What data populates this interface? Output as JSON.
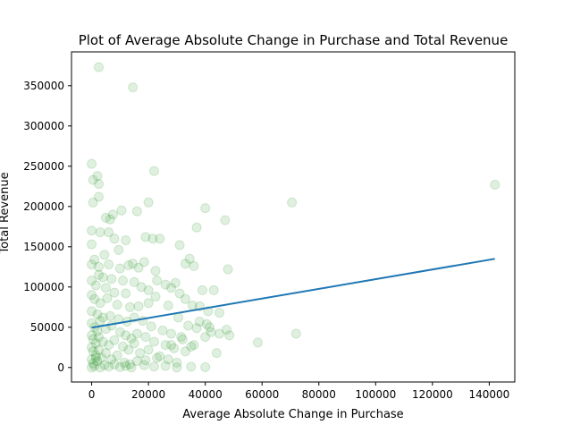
{
  "chart_data": {
    "type": "scatter",
    "title": "Plot of Average Absolute Change in Purchase and Total Revenue",
    "xlabel": "Average Absolute Change in Purchase",
    "ylabel": "Total Revenue",
    "xlim": [
      -7100,
      149000
    ],
    "ylim": [
      -18000,
      392000
    ],
    "xticks": [
      0,
      20000,
      40000,
      60000,
      80000,
      100000,
      120000,
      140000
    ],
    "yticks": [
      0,
      50000,
      100000,
      150000,
      200000,
      250000,
      300000,
      350000
    ],
    "grid": false,
    "point_color": "#008000",
    "point_alpha": 0.12,
    "line_color": "#1f77b4",
    "trend_line": [
      [
        0,
        49500
      ],
      [
        142000,
        135000
      ]
    ],
    "points": [
      [
        2500,
        373000
      ],
      [
        14500,
        348000
      ],
      [
        22000,
        244000
      ],
      [
        142000,
        227000
      ],
      [
        0,
        253000
      ],
      [
        2000,
        238000
      ],
      [
        500,
        233000
      ],
      [
        2500,
        228000
      ],
      [
        2500,
        212000
      ],
      [
        500,
        205000
      ],
      [
        20000,
        205000
      ],
      [
        70500,
        205000
      ],
      [
        40000,
        198000
      ],
      [
        16000,
        194000
      ],
      [
        10500,
        195000
      ],
      [
        7500,
        190000
      ],
      [
        47000,
        183000
      ],
      [
        5000,
        186000
      ],
      [
        6500,
        184000
      ],
      [
        37000,
        174000
      ],
      [
        0,
        170000
      ],
      [
        3000,
        168000
      ],
      [
        6000,
        168000
      ],
      [
        12000,
        158000
      ],
      [
        19000,
        162000
      ],
      [
        21500,
        160000
      ],
      [
        24000,
        160000
      ],
      [
        31000,
        152000
      ],
      [
        0,
        153000
      ],
      [
        8000,
        160000
      ],
      [
        4500,
        140000
      ],
      [
        9500,
        146000
      ],
      [
        34500,
        135000
      ],
      [
        33000,
        129000
      ],
      [
        36000,
        126000
      ],
      [
        48000,
        122000
      ],
      [
        22500,
        120000
      ],
      [
        18500,
        131000
      ],
      [
        1000,
        134000
      ],
      [
        0,
        128000
      ],
      [
        2500,
        125000
      ],
      [
        6000,
        128000
      ],
      [
        10000,
        123000
      ],
      [
        13000,
        127000
      ],
      [
        14500,
        129000
      ],
      [
        16500,
        124000
      ],
      [
        4000,
        112000
      ],
      [
        7000,
        110000
      ],
      [
        11000,
        108000
      ],
      [
        15000,
        106000
      ],
      [
        23000,
        108000
      ],
      [
        26000,
        103000
      ],
      [
        28000,
        99000
      ],
      [
        31000,
        92000
      ],
      [
        39000,
        96000
      ],
      [
        43000,
        96000
      ],
      [
        2500,
        115000
      ],
      [
        0,
        108000
      ],
      [
        1500,
        102000
      ],
      [
        5000,
        99000
      ],
      [
        8000,
        93000
      ],
      [
        12000,
        92000
      ],
      [
        17500,
        100000
      ],
      [
        20000,
        96000
      ],
      [
        29500,
        105000
      ],
      [
        33000,
        85000
      ],
      [
        35500,
        77000
      ],
      [
        38000,
        76000
      ],
      [
        41000,
        70000
      ],
      [
        45000,
        68000
      ],
      [
        47500,
        47000
      ],
      [
        48500,
        40000
      ],
      [
        58500,
        31000
      ],
      [
        72000,
        42000
      ],
      [
        0,
        90000
      ],
      [
        1000,
        85000
      ],
      [
        3000,
        80000
      ],
      [
        5500,
        86000
      ],
      [
        9000,
        78000
      ],
      [
        13500,
        75000
      ],
      [
        16500,
        76000
      ],
      [
        20000,
        80000
      ],
      [
        22500,
        88000
      ],
      [
        27000,
        77000
      ],
      [
        30500,
        62000
      ],
      [
        34000,
        52000
      ],
      [
        37000,
        49000
      ],
      [
        40500,
        54000
      ],
      [
        42000,
        44000
      ],
      [
        45000,
        42000
      ],
      [
        0,
        70000
      ],
      [
        2000,
        66000
      ],
      [
        4000,
        62000
      ],
      [
        6500,
        64000
      ],
      [
        9500,
        60000
      ],
      [
        12500,
        57000
      ],
      [
        15000,
        62000
      ],
      [
        18000,
        58000
      ],
      [
        21000,
        51000
      ],
      [
        25000,
        46000
      ],
      [
        28000,
        42000
      ],
      [
        31500,
        38000
      ],
      [
        36000,
        28000
      ],
      [
        40000,
        38000
      ],
      [
        44000,
        18000
      ],
      [
        0,
        55000
      ],
      [
        1000,
        50000
      ],
      [
        2000,
        45000
      ],
      [
        3000,
        58000
      ],
      [
        5000,
        48000
      ],
      [
        7000,
        52000
      ],
      [
        10000,
        44000
      ],
      [
        12000,
        40000
      ],
      [
        14000,
        36000
      ],
      [
        16000,
        42000
      ],
      [
        19000,
        38000
      ],
      [
        22000,
        32000
      ],
      [
        26000,
        28000
      ],
      [
        29000,
        24000
      ],
      [
        33000,
        20000
      ],
      [
        35000,
        26000
      ],
      [
        0,
        40000
      ],
      [
        500,
        35000
      ],
      [
        1500,
        30000
      ],
      [
        2500,
        38000
      ],
      [
        4000,
        32000
      ],
      [
        6000,
        28000
      ],
      [
        8000,
        34000
      ],
      [
        11000,
        26000
      ],
      [
        13000,
        22000
      ],
      [
        15000,
        30000
      ],
      [
        17000,
        18000
      ],
      [
        20000,
        22000
      ],
      [
        24000,
        14000
      ],
      [
        27000,
        10000
      ],
      [
        30000,
        6000
      ],
      [
        0,
        25000
      ],
      [
        500,
        20000
      ],
      [
        1500,
        15000
      ],
      [
        2500,
        22000
      ],
      [
        3500,
        12000
      ],
      [
        5000,
        18000
      ],
      [
        7000,
        10000
      ],
      [
        9000,
        15000
      ],
      [
        11500,
        6000
      ],
      [
        13500,
        4000
      ],
      [
        16000,
        8000
      ],
      [
        18500,
        3000
      ],
      [
        22000,
        1000
      ],
      [
        26000,
        2000
      ],
      [
        30000,
        0
      ],
      [
        35000,
        1000
      ],
      [
        40000,
        500
      ],
      [
        0,
        10000
      ],
      [
        500,
        5000
      ],
      [
        1000,
        2000
      ],
      [
        2000,
        8000
      ],
      [
        3000,
        0
      ],
      [
        4500,
        3000
      ],
      [
        6000,
        1000
      ],
      [
        8000,
        4000
      ],
      [
        10000,
        500
      ],
      [
        12000,
        2000
      ],
      [
        14000,
        0
      ],
      [
        0,
        0
      ],
      [
        1500,
        12000
      ],
      [
        19000,
        9000
      ],
      [
        23000,
        12000
      ],
      [
        28000,
        28000
      ],
      [
        32000,
        35000
      ],
      [
        38000,
        57000
      ],
      [
        41500,
        50000
      ]
    ]
  }
}
